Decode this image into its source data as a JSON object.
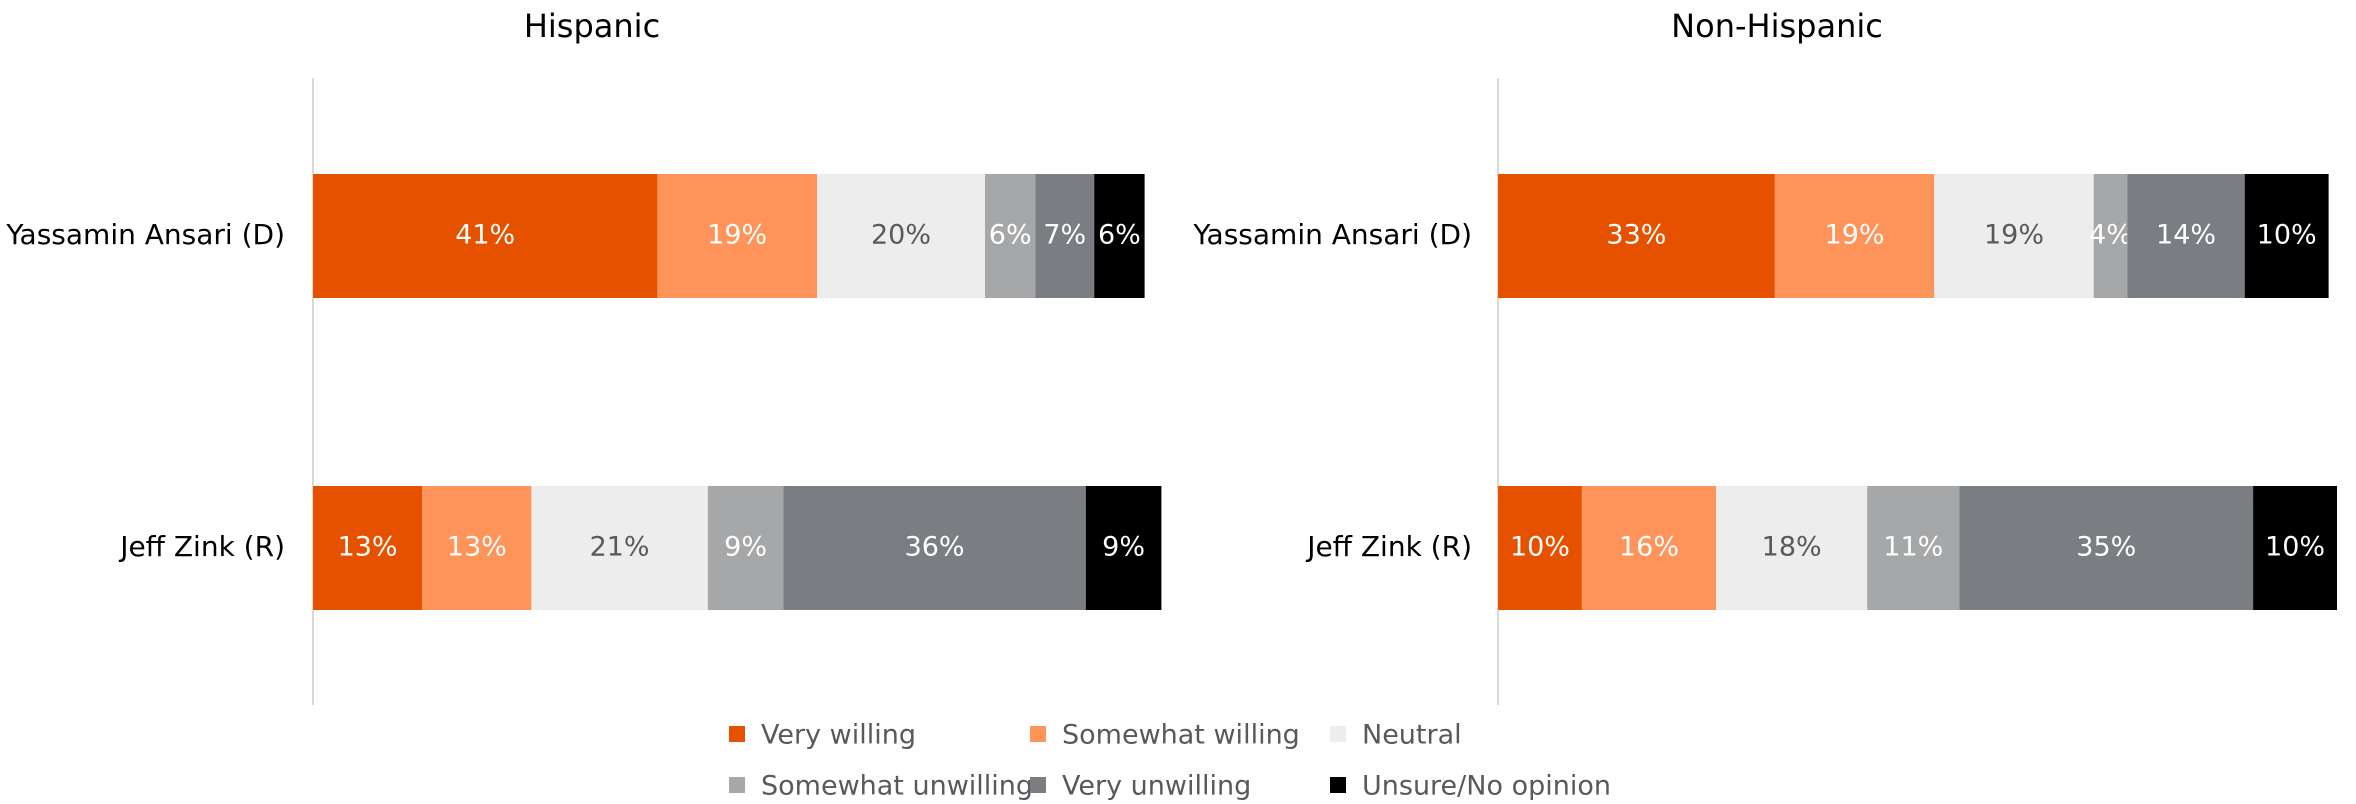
{
  "chart_data": [
    {
      "type": "stacked-bar-horizontal",
      "title": "Hispanic",
      "categories": [
        "Yassamin Ansari (D)",
        "Jeff Zink (R)"
      ],
      "xlim": [
        0,
        100
      ],
      "series": [
        {
          "name": "Very willing",
          "color": "#e65100",
          "values": [
            41,
            13
          ],
          "value_labels": [
            "41%",
            "13%"
          ]
        },
        {
          "name": "Somewhat willing",
          "color": "#ff945a",
          "values": [
            19,
            13
          ],
          "value_labels": [
            "19%",
            "13%"
          ]
        },
        {
          "name": "Neutral",
          "color": "#ededed",
          "values": [
            20,
            21
          ],
          "value_labels": [
            "20%",
            "21%"
          ]
        },
        {
          "name": "Somewhat unwilling",
          "color": "#a5a7a9",
          "values": [
            6,
            9
          ],
          "value_labels": [
            "6%",
            "9%"
          ]
        },
        {
          "name": "Very unwilling",
          "color": "#7a7e82",
          "values": [
            7,
            36
          ],
          "value_labels": [
            "7%",
            "36%"
          ]
        },
        {
          "name": "Unsure/No opinion",
          "color": "#000000",
          "values": [
            6,
            9
          ],
          "value_labels": [
            "6%",
            "9%"
          ]
        }
      ]
    },
    {
      "type": "stacked-bar-horizontal",
      "title": "Non-Hispanic",
      "categories": [
        "Yassamin Ansari (D)",
        "Jeff Zink (R)"
      ],
      "xlim": [
        0,
        100
      ],
      "series": [
        {
          "color": "#e65100",
          "values": [
            33,
            10
          ],
          "value_labels": [
            "33%",
            "10%"
          ]
        },
        {
          "color": "#ff945a",
          "values": [
            19,
            16
          ],
          "value_labels": [
            "19%",
            "16%"
          ]
        },
        {
          "color": "#ededed",
          "values": [
            19,
            18
          ],
          "value_labels": [
            "19%",
            "18%"
          ]
        },
        {
          "color": "#a5a7a9",
          "values": [
            4,
            11
          ],
          "value_labels": [
            "4%",
            "11%"
          ]
        },
        {
          "color": "#7a7e82",
          "values": [
            14,
            35
          ],
          "value_labels": [
            "14%",
            "35%"
          ]
        },
        {
          "color": "#000000",
          "values": [
            10,
            10
          ],
          "value_labels": [
            "10%",
            "10%"
          ]
        }
      ]
    }
  ]
}
